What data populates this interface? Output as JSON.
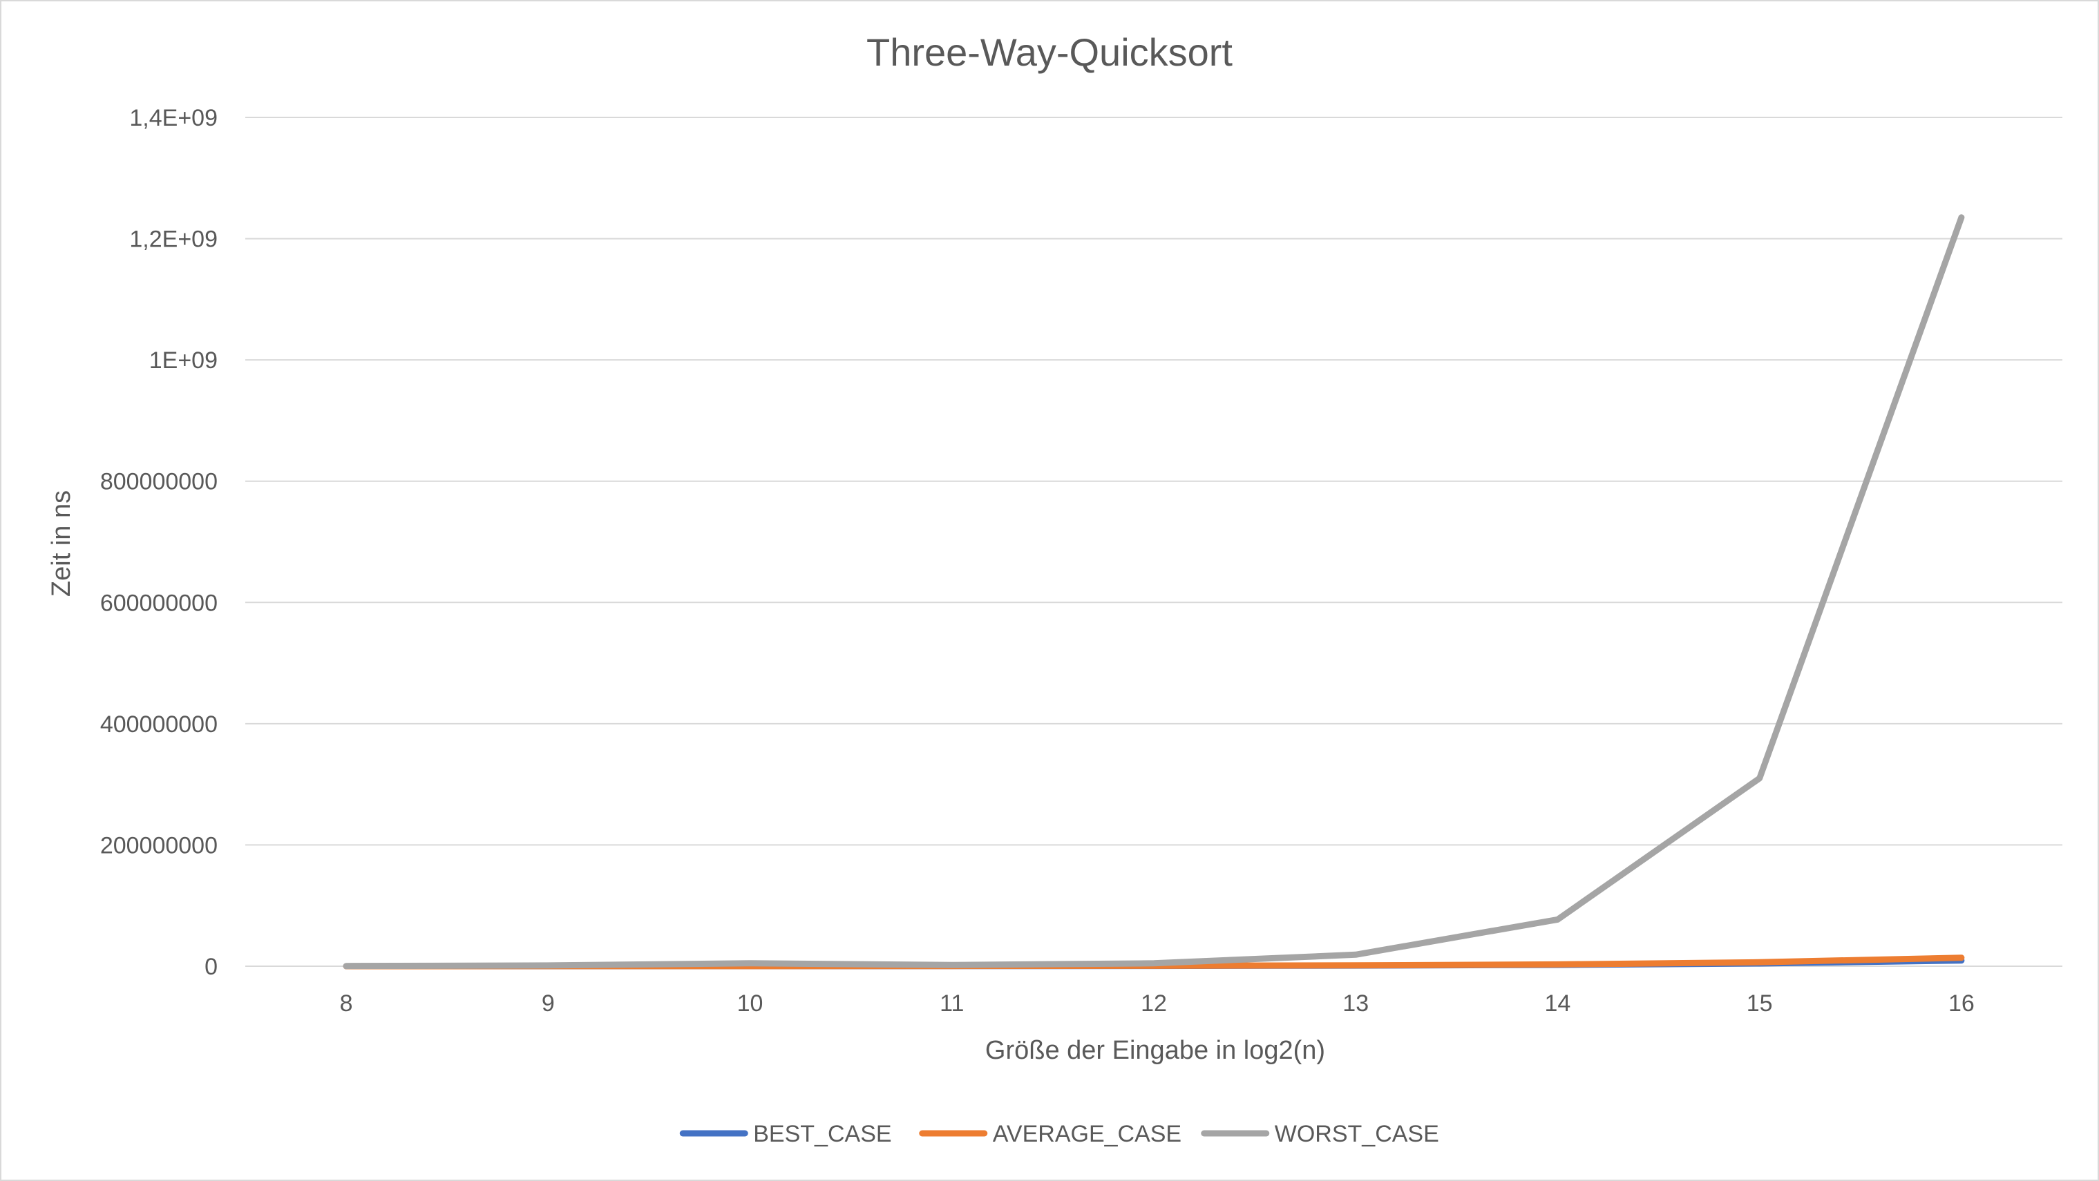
{
  "chart_data": {
    "type": "line",
    "title": "Three-Way-Quicksort",
    "xlabel": "Größe der Eingabe in log2(n)",
    "ylabel": "Zeit in ns",
    "categories": [
      "8",
      "9",
      "10",
      "11",
      "12",
      "13",
      "14",
      "15",
      "16"
    ],
    "ylim": [
      0,
      1400000000
    ],
    "yticks": [
      {
        "value": 0,
        "label": "0"
      },
      {
        "value": 200000000,
        "label": "200000000"
      },
      {
        "value": 400000000,
        "label": "400000000"
      },
      {
        "value": 600000000,
        "label": "600000000"
      },
      {
        "value": 800000000,
        "label": "800000000"
      },
      {
        "value": 1000000000,
        "label": "1E+09"
      },
      {
        "value": 1200000000,
        "label": "1,2E+09"
      },
      {
        "value": 1400000000,
        "label": "1,4E+09"
      }
    ],
    "grid": true,
    "legend_position": "bottom",
    "series": [
      {
        "name": "BEST_CASE",
        "color": "#4472c4",
        "values": [
          20000,
          45000,
          100000,
          220000,
          480000,
          1000000,
          2200000,
          4500000,
          9500000
        ]
      },
      {
        "name": "AVERAGE_CASE",
        "color": "#ed7d31",
        "values": [
          30000,
          65000,
          140000,
          300000,
          650000,
          1400000,
          3000000,
          6500000,
          14000000
        ]
      },
      {
        "name": "WORST_CASE",
        "color": "#a5a5a5",
        "values": [
          300000,
          1200000,
          4800000,
          1900000,
          4800000,
          19000000,
          77000000,
          310000000,
          1235000000
        ]
      }
    ]
  }
}
